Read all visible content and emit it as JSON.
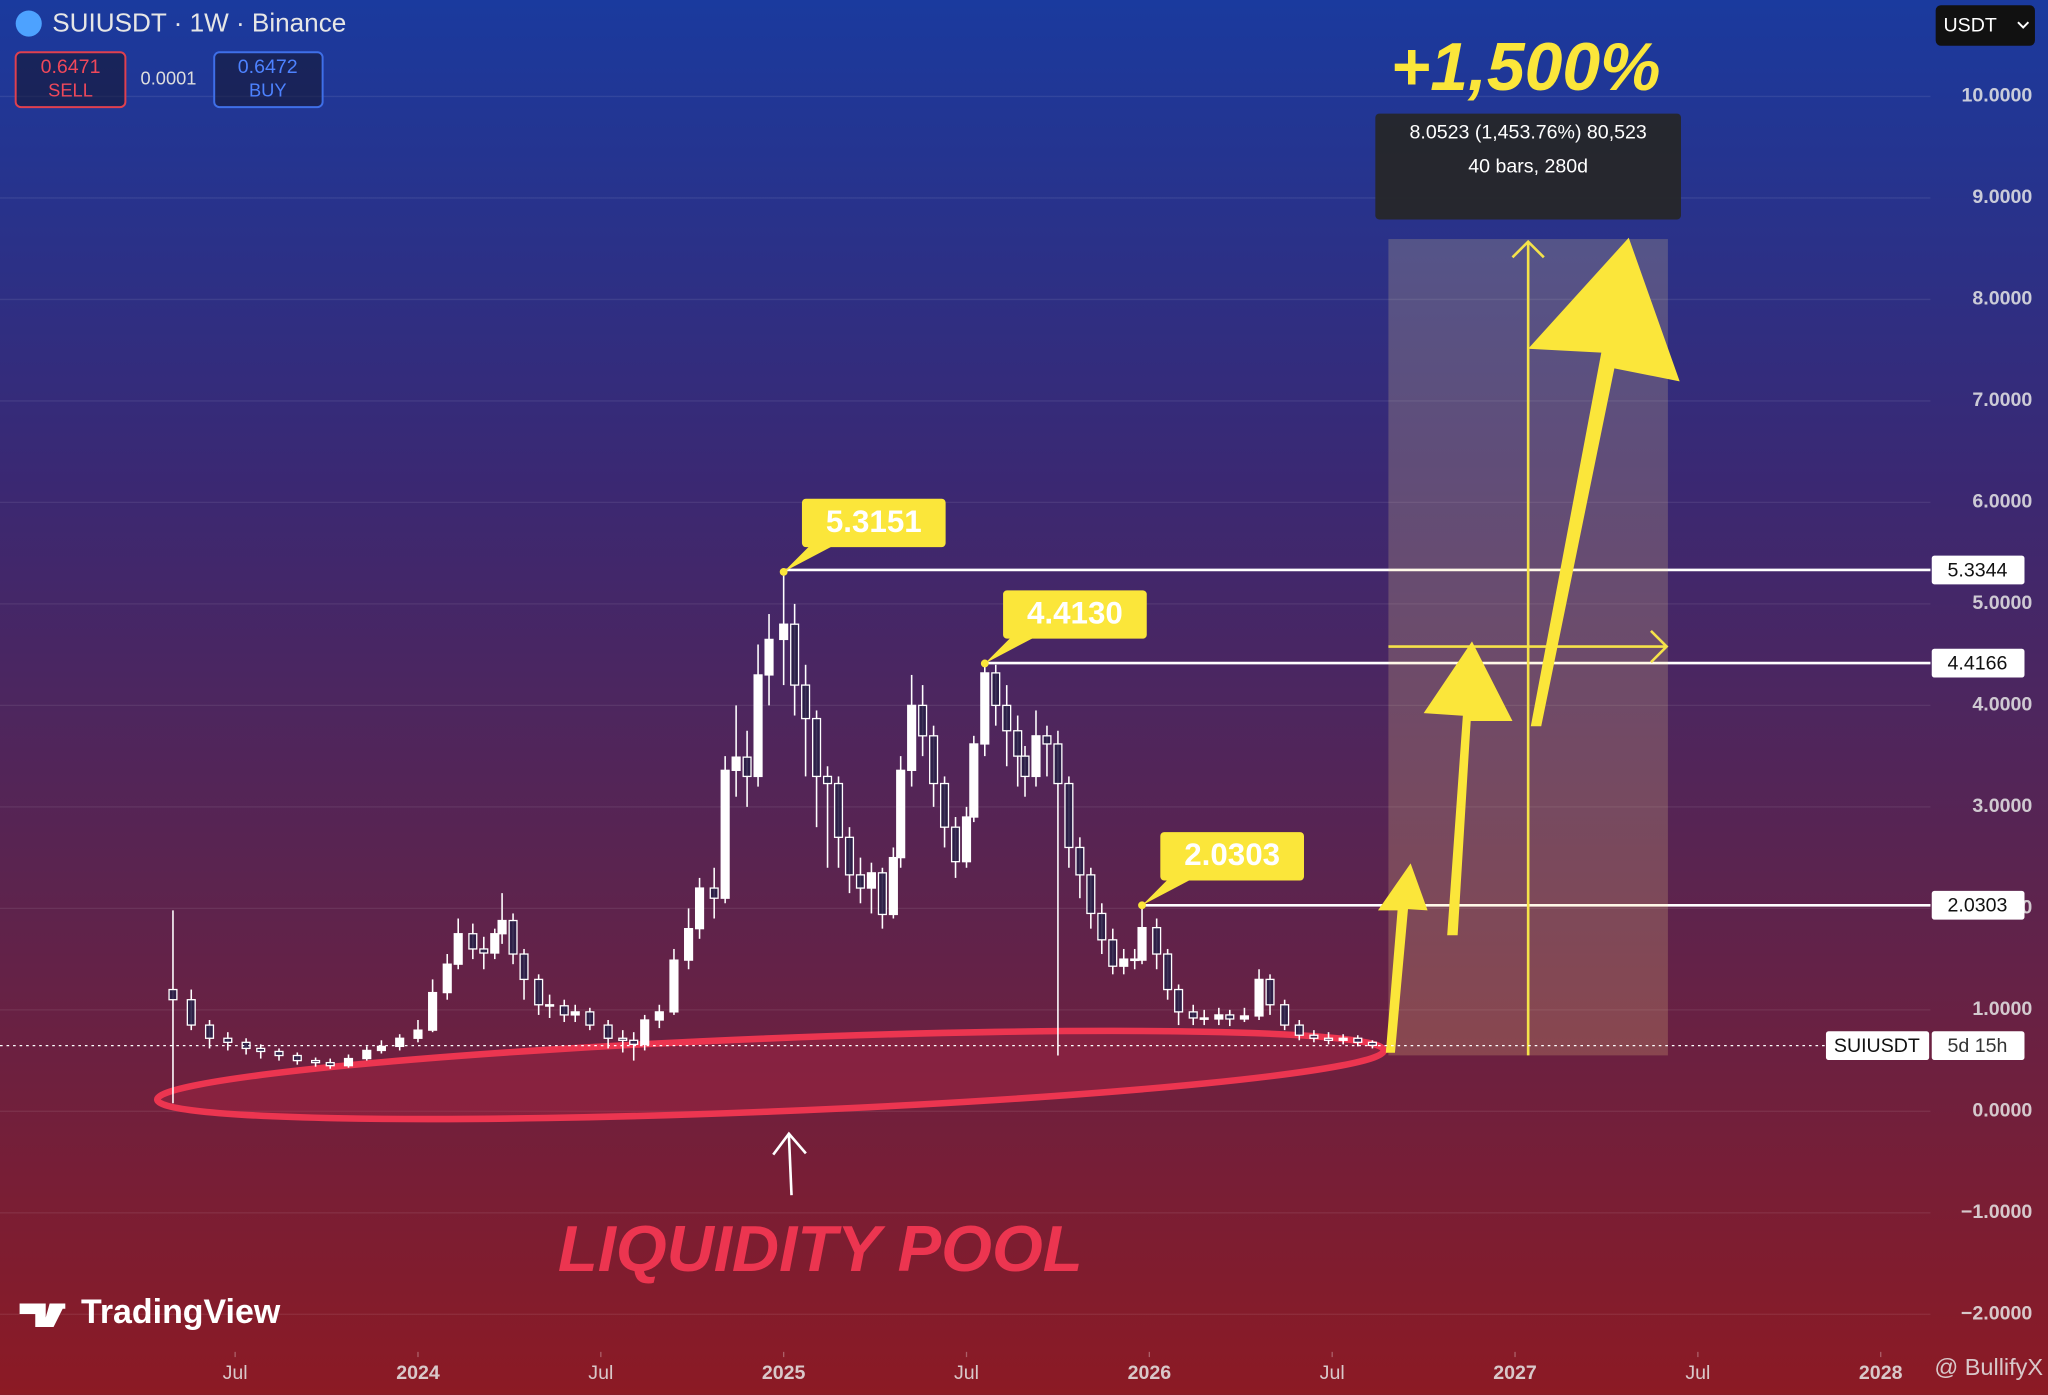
{
  "chart_data": {
    "type": "candlestick",
    "title": "SUIUSDT · 1W · Binance",
    "x": [
      2023.33,
      2023.38,
      2023.43,
      2023.48,
      2023.53,
      2023.57,
      2023.62,
      2023.67,
      2023.72,
      2023.76,
      2023.81,
      2023.86,
      2023.9,
      2023.95,
      2024.0,
      2024.04,
      2024.08,
      2024.11,
      2024.15,
      2024.18,
      2024.21,
      2024.23,
      2024.26,
      2024.29,
      2024.33,
      2024.36,
      2024.4,
      2024.43,
      2024.47,
      2024.52,
      2024.56,
      2024.59,
      2024.62,
      2024.66,
      2024.7,
      2024.74,
      2024.77,
      2024.81,
      2024.84,
      2024.87,
      2024.9,
      2024.93,
      2024.96,
      2025.0,
      2025.03,
      2025.06,
      2025.09,
      2025.12,
      2025.15,
      2025.18,
      2025.21,
      2025.24,
      2025.27,
      2025.3,
      2025.32,
      2025.35,
      2025.38,
      2025.41,
      2025.44,
      2025.47,
      2025.5,
      2025.52,
      2025.55,
      2025.58,
      2025.61,
      2025.64,
      2025.66,
      2025.69,
      2025.72,
      2025.75,
      2025.78,
      2025.81,
      2025.84,
      2025.87,
      2025.9,
      2025.93,
      2025.96,
      2025.98,
      2026.02,
      2026.05,
      2026.08,
      2026.12,
      2026.15,
      2026.19,
      2026.22,
      2026.26,
      2026.3,
      2026.33,
      2026.37,
      2026.41,
      2026.45,
      2026.49,
      2026.53,
      2026.57,
      2026.61
    ],
    "open": [
      1.2,
      1.1,
      0.85,
      0.72,
      0.68,
      0.62,
      0.59,
      0.55,
      0.5,
      0.48,
      0.45,
      0.52,
      0.6,
      0.64,
      0.72,
      0.8,
      1.17,
      1.45,
      1.75,
      1.6,
      1.56,
      1.75,
      1.88,
      1.55,
      1.3,
      1.05,
      1.04,
      0.95,
      0.98,
      0.85,
      0.72,
      0.7,
      0.66,
      0.9,
      0.98,
      1.49,
      1.8,
      2.2,
      2.1,
      3.36,
      3.49,
      3.3,
      4.3,
      4.65,
      4.8,
      4.2,
      3.87,
      3.3,
      3.23,
      2.7,
      2.33,
      2.2,
      2.35,
      1.94,
      2.5,
      3.36,
      4.0,
      3.7,
      3.23,
      2.8,
      2.46,
      2.9,
      3.62,
      4.32,
      4.0,
      3.75,
      3.5,
      3.3,
      3.7,
      3.62,
      3.23,
      2.6,
      2.33,
      1.95,
      1.69,
      1.43,
      1.5,
      1.49,
      1.81,
      1.55,
      1.2,
      0.98,
      0.92,
      0.91,
      0.95,
      0.91,
      0.94,
      1.3,
      1.05,
      0.85,
      0.75,
      0.72,
      0.7,
      0.72,
      0.68
    ],
    "high": [
      1.98,
      1.2,
      0.9,
      0.78,
      0.72,
      0.66,
      0.62,
      0.58,
      0.53,
      0.52,
      0.56,
      0.64,
      0.7,
      0.76,
      0.9,
      1.3,
      1.55,
      1.9,
      1.85,
      1.72,
      1.8,
      2.15,
      1.95,
      1.6,
      1.35,
      1.15,
      1.1,
      1.05,
      1.02,
      0.9,
      0.8,
      0.78,
      0.95,
      1.05,
      1.6,
      2.0,
      2.3,
      2.4,
      3.5,
      4.0,
      3.75,
      4.6,
      4.9,
      5.3151,
      5.0,
      4.4,
      3.95,
      3.4,
      3.3,
      2.8,
      2.5,
      2.45,
      2.4,
      2.6,
      3.5,
      4.3,
      4.2,
      3.8,
      3.3,
      2.9,
      3.0,
      3.7,
      4.413,
      4.4,
      4.2,
      3.9,
      3.6,
      3.95,
      3.8,
      3.75,
      3.3,
      2.7,
      2.4,
      2.05,
      1.8,
      1.6,
      1.6,
      2.0303,
      1.9,
      1.6,
      1.25,
      1.05,
      1.0,
      1.02,
      1.0,
      1.02,
      1.4,
      1.35,
      1.1,
      0.9,
      0.8,
      0.78,
      0.76,
      0.75,
      0.7
    ],
    "low": [
      0.08,
      0.8,
      0.62,
      0.6,
      0.56,
      0.52,
      0.5,
      0.46,
      0.44,
      0.42,
      0.43,
      0.5,
      0.57,
      0.6,
      0.68,
      0.78,
      1.1,
      1.4,
      1.5,
      1.4,
      1.5,
      1.65,
      1.45,
      1.1,
      0.95,
      0.92,
      0.88,
      0.88,
      0.8,
      0.62,
      0.58,
      0.5,
      0.6,
      0.82,
      0.95,
      1.4,
      1.7,
      1.9,
      2.05,
      3.1,
      3.0,
      3.2,
      4.0,
      4.2,
      3.9,
      3.3,
      2.8,
      2.4,
      2.4,
      2.15,
      2.05,
      1.95,
      1.8,
      1.9,
      2.4,
      3.2,
      3.5,
      3.0,
      2.6,
      2.3,
      2.4,
      2.85,
      3.5,
      3.8,
      3.4,
      3.2,
      3.1,
      3.2,
      3.3,
      0.55,
      2.4,
      2.1,
      1.8,
      1.55,
      1.35,
      1.35,
      1.4,
      1.45,
      1.4,
      1.1,
      0.85,
      0.85,
      0.85,
      0.85,
      0.84,
      0.88,
      0.9,
      0.95,
      0.8,
      0.7,
      0.68,
      0.66,
      0.66,
      0.64,
      0.62
    ],
    "close": [
      1.1,
      0.85,
      0.72,
      0.68,
      0.62,
      0.59,
      0.55,
      0.5,
      0.48,
      0.45,
      0.52,
      0.6,
      0.64,
      0.72,
      0.8,
      1.17,
      1.45,
      1.75,
      1.6,
      1.56,
      1.75,
      1.88,
      1.55,
      1.3,
      1.05,
      1.04,
      0.95,
      0.98,
      0.85,
      0.72,
      0.7,
      0.66,
      0.9,
      0.98,
      1.49,
      1.8,
      2.2,
      2.1,
      3.36,
      3.49,
      3.3,
      4.3,
      4.65,
      4.8,
      4.2,
      3.87,
      3.3,
      3.23,
      2.7,
      2.33,
      2.2,
      2.35,
      1.94,
      2.5,
      3.36,
      4.0,
      3.7,
      3.23,
      2.8,
      2.46,
      2.9,
      3.62,
      4.32,
      4.0,
      3.75,
      3.5,
      3.3,
      3.7,
      3.62,
      3.23,
      2.6,
      2.33,
      1.95,
      1.69,
      1.43,
      1.5,
      1.49,
      1.81,
      1.55,
      1.2,
      0.98,
      0.92,
      0.91,
      0.95,
      0.91,
      0.94,
      1.3,
      1.05,
      0.85,
      0.75,
      0.72,
      0.7,
      0.72,
      0.68,
      0.65
    ],
    "xlim": [
      2022.857,
      2028.136
    ],
    "ylim": [
      -2.37,
      10.95
    ],
    "xticks": [
      {
        "value": 2023.5,
        "label": "Jul"
      },
      2024,
      {
        "value": 2024.5,
        "label": "Jul"
      },
      2025,
      {
        "value": 2025.5,
        "label": "Jul"
      },
      2026,
      {
        "value": 2026.5,
        "label": "Jul"
      },
      2027,
      {
        "value": 2027.5,
        "label": "Jul"
      },
      2028
    ],
    "yticks": [
      {
        "value": -2,
        "label": "−2.0000"
      },
      {
        "value": -1,
        "label": "−1.0000"
      },
      {
        "value": 0,
        "label": "0.0000"
      },
      {
        "value": 1,
        "label": "1.0000"
      },
      {
        "value": 2,
        "label": "2.0000"
      },
      {
        "value": 3,
        "label": "3.0000"
      },
      {
        "value": 4,
        "label": "4.0000"
      },
      {
        "value": 5,
        "label": "5.0000"
      },
      {
        "value": 6,
        "label": "6.0000"
      },
      {
        "value": 7,
        "label": "7.0000"
      },
      {
        "value": 8,
        "label": "8.0000"
      },
      {
        "value": 9,
        "label": "9.0000"
      },
      {
        "value": 10,
        "label": "10.0000"
      }
    ],
    "grid": true,
    "up_color": "#ffffff",
    "annotations": [
      {
        "label": "5.3151",
        "x": 2025.0,
        "value": 5.3151
      },
      {
        "label": "4.4130",
        "x": 2025.55,
        "value": 4.413
      },
      {
        "label": "2.0303",
        "x": 2025.98,
        "value": 2.0303
      }
    ],
    "levels": [
      5.3344,
      4.4166,
      2.0303
    ],
    "price_label": "SUIUSDT",
    "countdown": "5d 15h",
    "measure": [
      "8.0523 (1,453.76%) 80,523",
      "40 bars, 280d"
    ],
    "headline": "+1,500%",
    "zone_label": "LIQUIDITY POOL"
  },
  "header": {
    "sell": 0.6471,
    "sell_label": "SELL",
    "spread": 0.0001,
    "buy": 0.6472,
    "buy_label": "BUY",
    "currency": "USDT"
  },
  "branding": {
    "logo": "TradingView",
    "watermark": "@ BullifyX"
  }
}
